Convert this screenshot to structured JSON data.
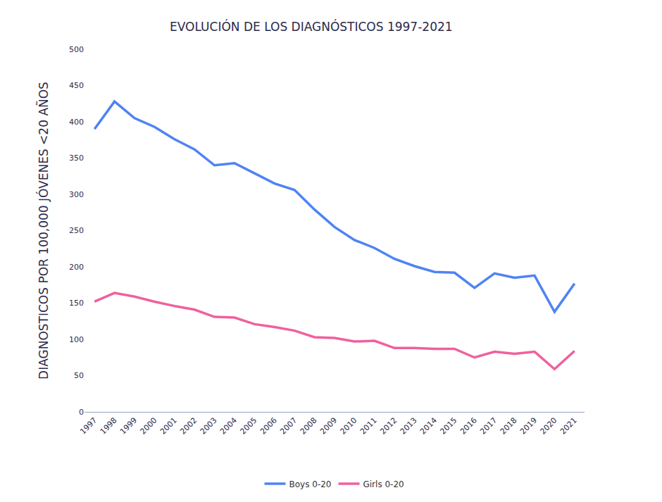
{
  "chart_data": {
    "type": "line",
    "title": "EVOLUCIÓN DE LOS DIAGNÓSTICOS 1997-2021",
    "y_label": "DIAGNOSTICOS POR 100,000 JÓVENES <20 AÑOS",
    "categories": [
      "1997",
      "1998",
      "1999",
      "2000",
      "2001",
      "2002",
      "2003",
      "2004",
      "2005",
      "2006",
      "2007",
      "2008",
      "2009",
      "2010",
      "2011",
      "2012",
      "2013",
      "2014",
      "2015",
      "2016",
      "2017",
      "2018",
      "2019",
      "2020",
      "2021"
    ],
    "series": [
      {
        "name": "Boys 0-20",
        "color": "#4f83f3",
        "values": [
          390,
          428,
          405,
          393,
          376,
          362,
          340,
          343,
          329,
          315,
          306,
          279,
          255,
          237,
          226,
          211,
          201,
          193,
          192,
          171,
          191,
          185,
          188,
          138,
          177
        ]
      },
      {
        "name": "Girls 0-20",
        "color": "#f0609e",
        "values": [
          152,
          164,
          159,
          152,
          146,
          141,
          131,
          130,
          121,
          117,
          112,
          103,
          102,
          97,
          98,
          88,
          88,
          87,
          87,
          75,
          83,
          80,
          83,
          59,
          84
        ]
      }
    ],
    "ylim": [
      0,
      500
    ],
    "yticks": [
      0,
      50,
      100,
      150,
      200,
      250,
      300,
      350,
      400,
      450,
      500
    ],
    "grid": false,
    "legend": "bottom"
  }
}
